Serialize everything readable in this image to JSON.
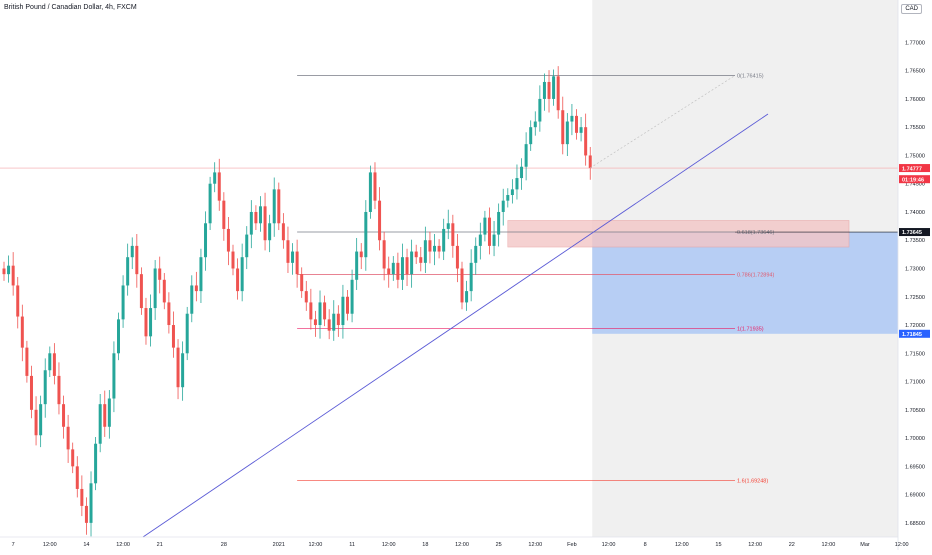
{
  "chart_data": {
    "type": "candlestick",
    "title": "British Pound / Canadian Dollar, 4h, FXCM",
    "currency": "CAD",
    "ylim": [
      1.6825,
      1.7775
    ],
    "y_ticks": [
      "1.68500",
      "1.69000",
      "1.69500",
      "1.70000",
      "1.70500",
      "1.71000",
      "1.71500",
      "1.72000",
      "1.72500",
      "1.73000",
      "1.73500",
      "1.74000",
      "1.74500",
      "1.75000",
      "1.75500",
      "1.76000",
      "1.76500",
      "1.77000"
    ],
    "x_ticks": [
      {
        "label": "7",
        "i": 2
      },
      {
        "label": "12:00",
        "i": 10
      },
      {
        "label": "14",
        "i": 18
      },
      {
        "label": "12:00",
        "i": 26
      },
      {
        "label": "21",
        "i": 34
      },
      {
        "label": "28",
        "i": 48
      },
      {
        "label": "2021",
        "i": 60
      },
      {
        "label": "12:00",
        "i": 68
      },
      {
        "label": "11",
        "i": 76
      },
      {
        "label": "12:00",
        "i": 84
      },
      {
        "label": "18",
        "i": 92
      },
      {
        "label": "12:00",
        "i": 100
      },
      {
        "label": "25",
        "i": 108
      },
      {
        "label": "12:00",
        "i": 116
      },
      {
        "label": "Feb",
        "i": 124
      },
      {
        "label": "12:00",
        "i": 132
      },
      {
        "label": "8",
        "i": 140
      },
      {
        "label": "12:00",
        "i": 148
      },
      {
        "label": "15",
        "i": 156
      },
      {
        "label": "12:00",
        "i": 164
      },
      {
        "label": "22",
        "i": 172
      },
      {
        "label": "12:00",
        "i": 180
      },
      {
        "label": "Mar",
        "i": 188
      },
      {
        "label": "12:00",
        "i": 196
      }
    ],
    "closes": [
      1.729,
      1.7305,
      1.727,
      1.7215,
      1.716,
      1.711,
      1.705,
      1.7005,
      1.706,
      1.712,
      1.715,
      1.711,
      1.706,
      1.702,
      1.698,
      1.695,
      1.691,
      1.688,
      1.685,
      1.692,
      1.699,
      1.706,
      1.702,
      1.707,
      1.715,
      1.721,
      1.727,
      1.732,
      1.734,
      1.729,
      1.723,
      1.718,
      1.723,
      1.73,
      1.728,
      1.724,
      1.72,
      1.716,
      1.709,
      1.715,
      1.722,
      1.727,
      1.726,
      1.732,
      1.738,
      1.745,
      1.747,
      1.742,
      1.737,
      1.733,
      1.73,
      1.726,
      1.732,
      1.736,
      1.74,
      1.738,
      1.741,
      1.735,
      1.738,
      1.744,
      1.738,
      1.735,
      1.731,
      1.733,
      1.729,
      1.726,
      1.724,
      1.721,
      1.72,
      1.724,
      1.721,
      1.719,
      1.722,
      1.72,
      1.725,
      1.722,
      1.728,
      1.733,
      1.732,
      1.74,
      1.747,
      1.742,
      1.735,
      1.73,
      1.729,
      1.731,
      1.728,
      1.732,
      1.729,
      1.733,
      1.732,
      1.731,
      1.735,
      1.733,
      1.734,
      1.733,
      1.737,
      1.738,
      1.734,
      1.73,
      1.724,
      1.726,
      1.731,
      1.734,
      1.736,
      1.739,
      1.734,
      1.736,
      1.74,
      1.742,
      1.743,
      1.744,
      1.746,
      1.748,
      1.752,
      1.755,
      1.756,
      1.76,
      1.763,
      1.76,
      1.764,
      1.758,
      1.752,
      1.756,
      1.757,
      1.754,
      1.755,
      1.75,
      1.7478
    ],
    "fibonacci": [
      {
        "label": "0(1.76415)",
        "value": 1.76415,
        "color": "#787b86"
      },
      {
        "label": "0.618(1.73646)",
        "value": 1.73646,
        "color": "#787b86"
      },
      {
        "label": "0.786(1.72894)",
        "value": 1.72894,
        "color": "#e05a6e"
      },
      {
        "label": "1(1.71935)",
        "value": 1.71935,
        "color": "#e91e63"
      },
      {
        "label": "1.6(1.69248)",
        "value": 1.69248,
        "color": "#f44336"
      }
    ],
    "price_labels": [
      {
        "text": "1.74777",
        "value": 1.74777,
        "color": "#f23645"
      },
      {
        "text": "01:19:46",
        "value": 1.7458,
        "color": "#f23645"
      },
      {
        "text": "1.73645",
        "value": 1.73645,
        "color": "#131722"
      },
      {
        "text": "1.71845",
        "value": 1.71845,
        "color": "#2962ff"
      }
    ],
    "colors": {
      "up": "#26a69a",
      "down": "#ef5350",
      "trendline": "#5b5bd6",
      "box": "#adc8f5",
      "zone": "#f3c6c6"
    }
  }
}
